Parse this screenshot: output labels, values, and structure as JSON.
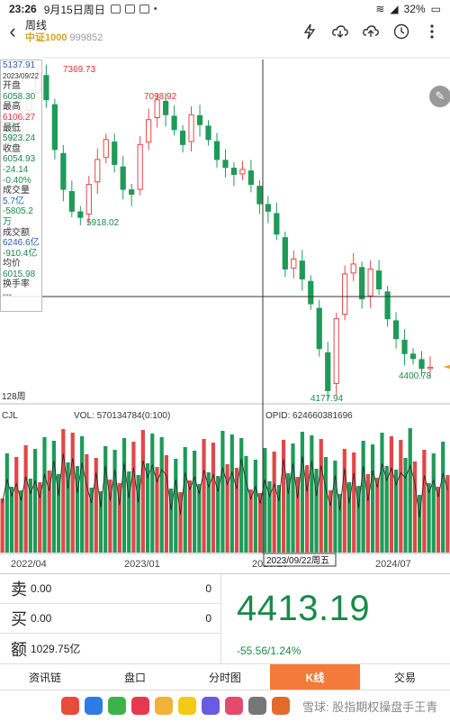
{
  "status_bar": {
    "time": "23:26",
    "date": "9月15日周日",
    "battery": "32%"
  },
  "header": {
    "title": "周线",
    "index_name": "中证1000",
    "index_code": "999852"
  },
  "info_panel": {
    "price": "5137.91",
    "date": "2023/09/22",
    "open_label": "开盘",
    "open": "6058.30",
    "high_label": "最高",
    "high": "6106.27",
    "low_label": "最低",
    "low": "5923.24",
    "close_label": "收盘",
    "close": "6054.93",
    "change": "-24.14",
    "change_pct": "-0.40%",
    "volume_label": "成交量",
    "volume": "5.7亿",
    "volume_change": "-5805.2万",
    "amount_label": "成交额",
    "amount": "6246.6亿",
    "amount_change": "-910.4亿",
    "avg_label": "均价",
    "avg": "6015.98",
    "turnover_label": "换手率",
    "turnover": "---"
  },
  "chart_labels": {
    "peak1": "7369.73",
    "low1": "5918.02",
    "peak2": "7098.92",
    "low2": "4177.94",
    "last": "4400.78",
    "period_count": "128周"
  },
  "indicator": {
    "name": "CJL",
    "vol": "VOL: 570134784(0:100)",
    "opid": "OPID: 624660381696"
  },
  "x_axis": [
    "2022/04",
    "2023/01",
    "2023/10",
    "2024/07"
  ],
  "crosshair_date": "2023/09/22周五",
  "quote": {
    "sell_label": "卖",
    "sell_value": "0.00",
    "sell_count": "0",
    "buy_label": "买",
    "buy_value": "0.00",
    "buy_count": "0",
    "amount_label": "额",
    "amount_value": "1029.75亿",
    "price": "4413.19",
    "change": "-55.56/1.24%"
  },
  "tabs": [
    "资讯链",
    "盘口",
    "分时图",
    "K线",
    "交易"
  ],
  "watermark": "雪球: 股指期权操盘手王青",
  "chart_data": {
    "type": "candlestick",
    "series": [
      {
        "values": [
          6900,
          6700,
          6980,
          7150,
          7369.73,
          7100,
          6600,
          6200,
          5980,
          5918.02,
          6250,
          6500,
          6700,
          6450,
          6200,
          6150,
          6650,
          6900,
          7098.92,
          6950,
          6800,
          6650,
          6950,
          6850,
          6700,
          6500,
          6420,
          6350,
          6400,
          6250,
          6054.93,
          5980,
          5750,
          5400,
          5500,
          5300,
          5050,
          4600,
          4177.94,
          4900,
          5350,
          5450,
          5100,
          5400,
          5200,
          4900,
          4700,
          4550,
          4500,
          4400.78,
          4413.19
        ]
      }
    ]
  }
}
